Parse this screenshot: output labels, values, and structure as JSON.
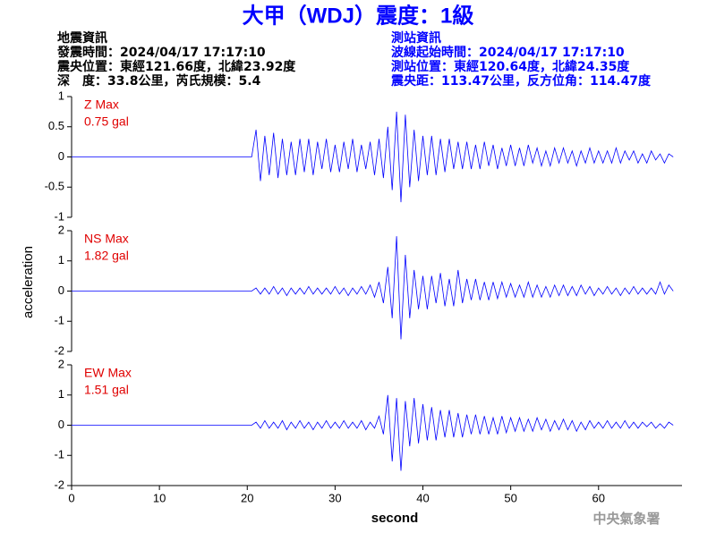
{
  "header": {
    "title": "大甲（WDJ）震度：1級",
    "left_info": [
      "地震資訊",
      "發震時間：2024/04/17 17:17:10",
      "震央位置：東經121.66度，北緯23.92度",
      "深　度：33.8公里，芮氏規模：5.4"
    ],
    "right_info": [
      "測站資訊",
      "波線起始時間：2024/04/17 17:17:10",
      "測站位置：東經120.64度，北緯24.35度",
      "震央距：113.47公里，反方位角：114.47度"
    ],
    "footer": "中央氣象署"
  },
  "chart_data": [
    {
      "type": "line",
      "max_label": "Z Max",
      "max_value_label": "0.75 gal",
      "color": "#0000ff",
      "xlim": [
        0,
        69.5
      ],
      "ylim": [
        -1,
        1
      ],
      "yticks": [
        1,
        0.5,
        0,
        -0.5,
        -1
      ],
      "x": [
        0,
        20.5,
        21,
        21.5,
        22,
        22.5,
        23,
        23.5,
        24,
        24.5,
        25,
        25.5,
        26,
        26.5,
        27,
        27.5,
        28,
        28.5,
        29,
        29.5,
        30,
        30.5,
        31,
        31.5,
        32,
        32.5,
        33,
        33.5,
        34,
        34.5,
        35,
        35.5,
        36,
        36.5,
        37,
        37.5,
        38,
        38.5,
        39,
        39.5,
        40,
        40.5,
        41,
        41.5,
        42,
        42.5,
        43,
        43.5,
        44,
        44.5,
        45,
        45.5,
        46,
        46.5,
        47,
        47.5,
        48,
        48.5,
        49,
        49.5,
        50,
        50.5,
        51,
        51.5,
        52,
        52.5,
        53,
        53.5,
        54,
        54.5,
        55,
        55.5,
        56,
        56.5,
        57,
        57.5,
        58,
        58.5,
        59,
        59.5,
        60,
        60.5,
        61,
        61.5,
        62,
        62.5,
        63,
        63.5,
        64,
        64.5,
        65,
        65.5,
        66,
        66.5,
        67,
        67.5,
        68,
        68.5
      ],
      "values": [
        0,
        0,
        0.45,
        -0.4,
        0.35,
        -0.3,
        0.4,
        -0.35,
        0.3,
        -0.3,
        0.25,
        -0.3,
        0.3,
        -0.25,
        0.3,
        -0.3,
        0.25,
        -0.2,
        0.3,
        -0.25,
        0.2,
        -0.25,
        0.25,
        -0.2,
        0.3,
        -0.25,
        0.2,
        -0.2,
        0.25,
        -0.3,
        0.3,
        -0.35,
        0.5,
        -0.55,
        0.75,
        -0.75,
        0.7,
        -0.5,
        0.45,
        -0.4,
        0.35,
        -0.3,
        0.35,
        -0.3,
        0.3,
        -0.25,
        0.3,
        -0.2,
        0.25,
        -0.2,
        0.25,
        -0.2,
        0.2,
        -0.2,
        0.25,
        -0.15,
        0.2,
        -0.2,
        0.15,
        -0.15,
        0.2,
        -0.15,
        0.15,
        -0.15,
        0.2,
        -0.1,
        0.15,
        -0.15,
        0.1,
        -0.15,
        0.15,
        -0.1,
        0.15,
        -0.1,
        0.1,
        -0.15,
        0.1,
        -0.1,
        0.15,
        -0.1,
        0.1,
        -0.1,
        0.1,
        -0.1,
        0.15,
        -0.1,
        0.1,
        -0.05,
        0.1,
        -0.1,
        0.05,
        -0.1,
        0.1,
        -0.05,
        0.05,
        -0.1,
        0.05,
        0
      ]
    },
    {
      "type": "line",
      "max_label": "NS Max",
      "max_value_label": "1.82 gal",
      "color": "#0000ff",
      "ylabel": "acceleration",
      "xlim": [
        0,
        69.5
      ],
      "ylim": [
        -2,
        2
      ],
      "yticks": [
        2,
        1,
        0,
        -1,
        -2
      ],
      "x": [
        0,
        20.5,
        21,
        21.5,
        22,
        22.5,
        23,
        23.5,
        24,
        24.5,
        25,
        25.5,
        26,
        26.5,
        27,
        27.5,
        28,
        28.5,
        29,
        29.5,
        30,
        30.5,
        31,
        31.5,
        32,
        32.5,
        33,
        33.5,
        34,
        34.5,
        35,
        35.5,
        36,
        36.5,
        37,
        37.5,
        38,
        38.5,
        39,
        39.5,
        40,
        40.5,
        41,
        41.5,
        42,
        42.5,
        43,
        43.5,
        44,
        44.5,
        45,
        45.5,
        46,
        46.5,
        47,
        47.5,
        48,
        48.5,
        49,
        49.5,
        50,
        50.5,
        51,
        51.5,
        52,
        52.5,
        53,
        53.5,
        54,
        54.5,
        55,
        55.5,
        56,
        56.5,
        57,
        57.5,
        58,
        58.5,
        59,
        59.5,
        60,
        60.5,
        61,
        61.5,
        62,
        62.5,
        63,
        63.5,
        64,
        64.5,
        65,
        65.5,
        66,
        66.5,
        67,
        67.5,
        68,
        68.5
      ],
      "values": [
        0,
        0,
        0.1,
        -0.1,
        0.1,
        -0.1,
        0.15,
        -0.1,
        0.1,
        -0.15,
        0.1,
        -0.1,
        0.1,
        -0.1,
        0.15,
        -0.1,
        0.1,
        -0.1,
        0.1,
        -0.1,
        0.15,
        -0.1,
        0.1,
        -0.15,
        0.1,
        -0.1,
        0.15,
        -0.1,
        0.2,
        -0.2,
        0.3,
        -0.4,
        0.8,
        -0.9,
        1.82,
        -1.6,
        1.2,
        -0.9,
        0.7,
        -0.6,
        0.5,
        -0.6,
        0.5,
        -0.4,
        0.6,
        -0.5,
        0.4,
        -0.5,
        0.7,
        -0.4,
        0.4,
        -0.3,
        0.4,
        -0.3,
        0.3,
        -0.3,
        0.3,
        -0.25,
        0.3,
        -0.2,
        0.25,
        -0.2,
        0.2,
        -0.2,
        0.3,
        -0.2,
        0.2,
        -0.2,
        0.15,
        -0.2,
        0.2,
        -0.15,
        0.2,
        -0.15,
        0.15,
        -0.15,
        0.2,
        -0.1,
        0.15,
        -0.15,
        0.1,
        -0.1,
        0.15,
        -0.1,
        0.1,
        -0.15,
        0.1,
        -0.1,
        0.15,
        -0.1,
        0.1,
        -0.1,
        0.1,
        -0.1,
        0.3,
        -0.1,
        0.2,
        0
      ]
    },
    {
      "type": "line",
      "max_label": "EW Max",
      "max_value_label": "1.51 gal",
      "color": "#0000ff",
      "xlabel": "second",
      "xlim": [
        0,
        69.5
      ],
      "ylim": [
        -2,
        2
      ],
      "yticks": [
        2,
        1,
        0,
        -1,
        -2
      ],
      "xticks": [
        0,
        10,
        20,
        30,
        40,
        50,
        60
      ],
      "x": [
        0,
        20.5,
        21,
        21.5,
        22,
        22.5,
        23,
        23.5,
        24,
        24.5,
        25,
        25.5,
        26,
        26.5,
        27,
        27.5,
        28,
        28.5,
        29,
        29.5,
        30,
        30.5,
        31,
        31.5,
        32,
        32.5,
        33,
        33.5,
        34,
        34.5,
        35,
        35.5,
        36,
        36.5,
        37,
        37.5,
        38,
        38.5,
        39,
        39.5,
        40,
        40.5,
        41,
        41.5,
        42,
        42.5,
        43,
        43.5,
        44,
        44.5,
        45,
        45.5,
        46,
        46.5,
        47,
        47.5,
        48,
        48.5,
        49,
        49.5,
        50,
        50.5,
        51,
        51.5,
        52,
        52.5,
        53,
        53.5,
        54,
        54.5,
        55,
        55.5,
        56,
        56.5,
        57,
        57.5,
        58,
        58.5,
        59,
        59.5,
        60,
        60.5,
        61,
        61.5,
        62,
        62.5,
        63,
        63.5,
        64,
        64.5,
        65,
        65.5,
        66,
        66.5,
        67,
        67.5,
        68,
        68.5
      ],
      "values": [
        0,
        0,
        0.1,
        -0.1,
        0.15,
        -0.1,
        0.1,
        -0.1,
        0.15,
        -0.15,
        0.1,
        -0.1,
        0.15,
        -0.1,
        0.1,
        -0.15,
        0.1,
        -0.1,
        0.15,
        -0.1,
        0.1,
        -0.1,
        0.15,
        -0.1,
        0.1,
        -0.1,
        0.15,
        -0.15,
        0.1,
        -0.1,
        0.3,
        -0.3,
        1.0,
        -1.2,
        0.9,
        -1.51,
        0.8,
        -0.7,
        0.9,
        -0.6,
        0.7,
        -0.5,
        0.6,
        -0.5,
        0.5,
        -0.4,
        0.5,
        -0.4,
        0.4,
        -0.4,
        0.35,
        -0.3,
        0.35,
        -0.3,
        0.3,
        -0.3,
        0.25,
        -0.3,
        0.3,
        -0.25,
        0.25,
        -0.2,
        0.25,
        -0.2,
        0.2,
        -0.2,
        0.25,
        -0.15,
        0.2,
        -0.2,
        0.15,
        -0.15,
        0.2,
        -0.15,
        0.15,
        -0.2,
        0.1,
        -0.15,
        0.15,
        -0.1,
        0.1,
        -0.1,
        0.15,
        -0.1,
        0.1,
        -0.1,
        0.15,
        -0.1,
        0.1,
        -0.1,
        0.1,
        -0.05,
        0.1,
        -0.1,
        0.05,
        -0.1,
        0.1,
        0
      ]
    }
  ]
}
